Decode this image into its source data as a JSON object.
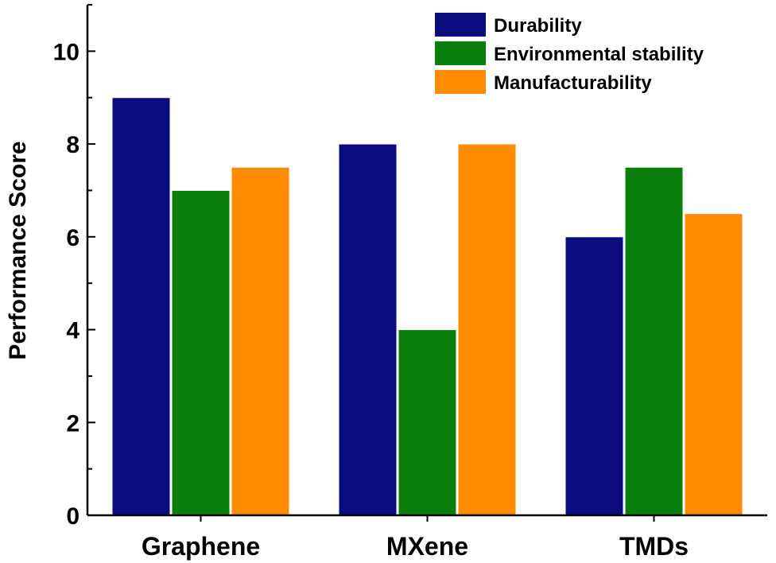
{
  "chart_data": {
    "type": "bar",
    "title": "",
    "xlabel": "",
    "ylabel": "Performance Score",
    "ylim": [
      0,
      11
    ],
    "yticks": [
      0,
      2,
      4,
      6,
      8,
      10
    ],
    "grid": false,
    "legend_position": "top-right",
    "categories": [
      "Graphene",
      "MXene",
      "TMDs"
    ],
    "series": [
      {
        "name": "Durability",
        "color": "#0b0b7f",
        "values": [
          9,
          8,
          6
        ]
      },
      {
        "name": "Environmental stability",
        "color": "#0b7f0b",
        "values": [
          7,
          4,
          7.5
        ]
      },
      {
        "name": "Manufacturability",
        "color": "#ff8c00",
        "values": [
          7.5,
          8,
          6.5
        ]
      }
    ]
  }
}
